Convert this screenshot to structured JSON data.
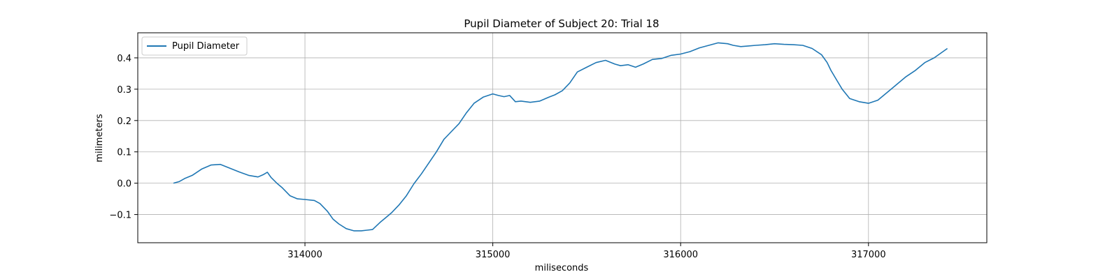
{
  "chart_data": {
    "type": "line",
    "title": "Pupil Diameter of Subject 20: Trial 18",
    "xlabel": "miliseconds",
    "ylabel": "milimeters",
    "xlim": [
      313110,
      317630
    ],
    "ylim": [
      -0.19,
      0.48
    ],
    "xticks": [
      314000,
      315000,
      316000,
      317000
    ],
    "yticks": [
      -0.1,
      0.0,
      0.1,
      0.2,
      0.3,
      0.4
    ],
    "ytick_labels": [
      "−0.1",
      "0.0",
      "0.1",
      "0.2",
      "0.3",
      "0.4"
    ],
    "grid": true,
    "legend_position": "top-left",
    "series": [
      {
        "name": "Pupil Diameter",
        "color": "#1f77b4",
        "x": [
          313300,
          313330,
          313360,
          313400,
          313450,
          313500,
          313550,
          313600,
          313650,
          313700,
          313750,
          313780,
          313800,
          313820,
          313850,
          313880,
          313920,
          313960,
          314000,
          314050,
          314080,
          314120,
          314150,
          314180,
          314220,
          314260,
          314300,
          314330,
          314360,
          314400,
          314430,
          314460,
          314500,
          314540,
          314580,
          314620,
          314660,
          314700,
          314740,
          314780,
          314820,
          314860,
          314900,
          314950,
          315000,
          315030,
          315060,
          315090,
          315120,
          315150,
          315200,
          315250,
          315300,
          315330,
          315370,
          315410,
          315450,
          315500,
          315550,
          315600,
          315650,
          315680,
          315720,
          315760,
          315800,
          315850,
          315900,
          315950,
          316000,
          316050,
          316100,
          316150,
          316200,
          316250,
          316280,
          316320,
          316360,
          316400,
          316450,
          316500,
          316550,
          316600,
          316650,
          316700,
          316750,
          316780,
          316800,
          316830,
          316860,
          316900,
          316950,
          317000,
          317050,
          317100,
          317150,
          317200,
          317250,
          317300,
          317350,
          317420
        ],
        "y": [
          0.0,
          0.005,
          0.015,
          0.025,
          0.045,
          0.058,
          0.06,
          0.048,
          0.036,
          0.025,
          0.02,
          0.028,
          0.035,
          0.018,
          0.0,
          -0.015,
          -0.04,
          -0.05,
          -0.052,
          -0.055,
          -0.065,
          -0.09,
          -0.115,
          -0.13,
          -0.145,
          -0.152,
          -0.152,
          -0.15,
          -0.148,
          -0.125,
          -0.11,
          -0.095,
          -0.07,
          -0.04,
          -0.002,
          0.03,
          0.065,
          0.1,
          0.14,
          0.165,
          0.19,
          0.225,
          0.255,
          0.275,
          0.285,
          0.28,
          0.276,
          0.28,
          0.26,
          0.262,
          0.258,
          0.262,
          0.275,
          0.282,
          0.295,
          0.32,
          0.355,
          0.37,
          0.385,
          0.392,
          0.38,
          0.375,
          0.378,
          0.37,
          0.38,
          0.395,
          0.398,
          0.408,
          0.412,
          0.42,
          0.432,
          0.44,
          0.448,
          0.445,
          0.44,
          0.436,
          0.438,
          0.44,
          0.442,
          0.445,
          0.443,
          0.442,
          0.44,
          0.43,
          0.41,
          0.385,
          0.36,
          0.33,
          0.3,
          0.27,
          0.26,
          0.255,
          0.265,
          0.29,
          0.315,
          0.34,
          0.36,
          0.385,
          0.4,
          0.43
        ]
      }
    ]
  }
}
